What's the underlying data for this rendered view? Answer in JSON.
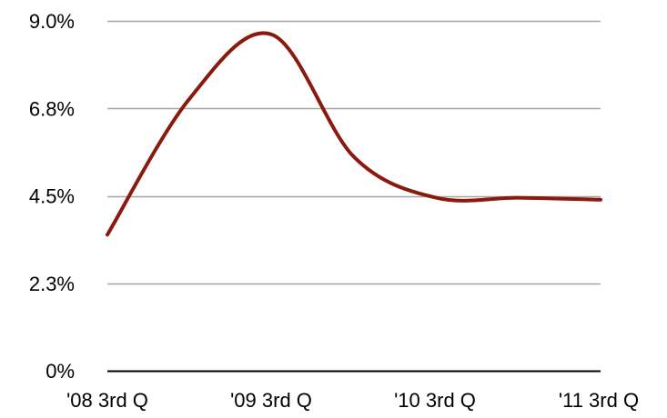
{
  "chart_data": {
    "type": "line",
    "title": "",
    "xlabel": "",
    "ylabel": "",
    "x_ticks": [
      "'08 3rd Q",
      "'09 3rd Q",
      "'10 3rd Q",
      "'11 3rd Q"
    ],
    "y_ticks": [
      "0%",
      "2.3%",
      "4.5%",
      "6.8%",
      "9.0%"
    ],
    "y_tick_values": [
      0,
      2.25,
      4.5,
      6.75,
      9.0
    ],
    "ylim": [
      0,
      9.0
    ],
    "x_range": [
      0,
      3
    ],
    "grid": true,
    "series": [
      {
        "color": "#8b1a0e",
        "x": [
          0,
          0.5,
          1.0,
          1.5,
          2.0,
          2.5,
          3.0
        ],
        "y": [
          3.5,
          7.0,
          8.65,
          5.5,
          4.45,
          4.45,
          4.4
        ]
      }
    ]
  }
}
